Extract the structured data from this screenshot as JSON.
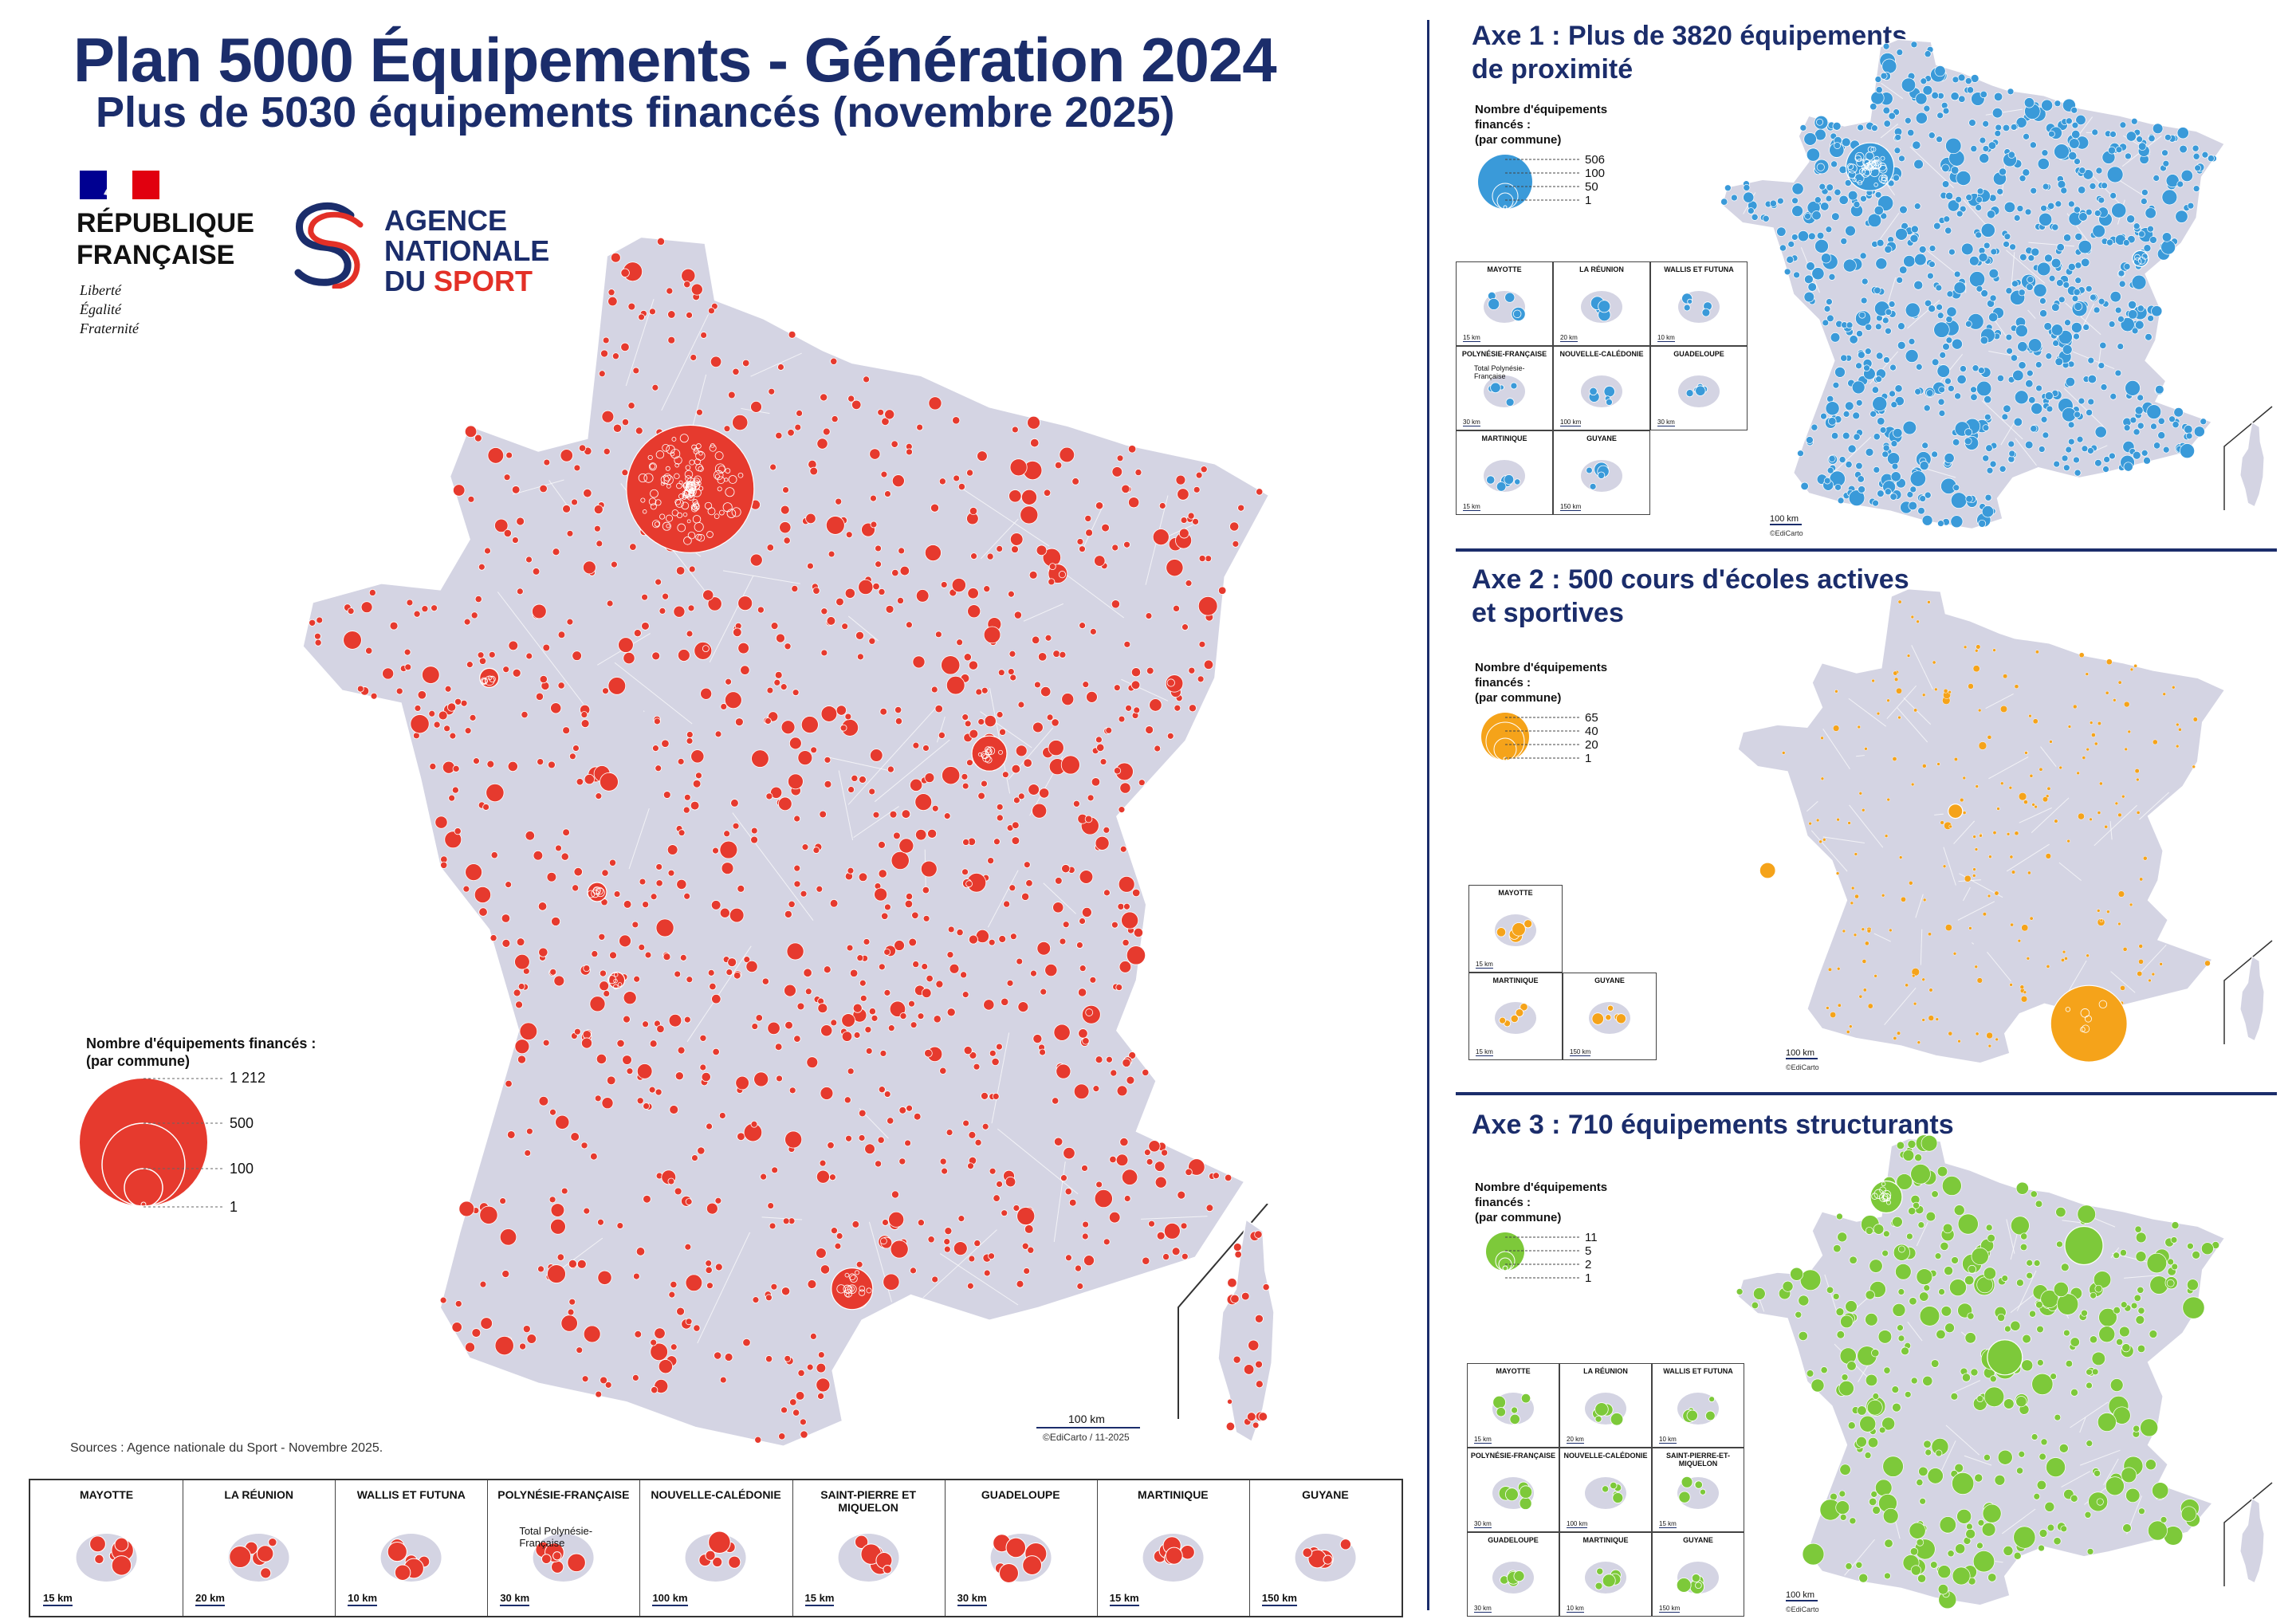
{
  "header": {
    "title": "Plan 5000 Équipements - Génération 2024",
    "subtitle": "Plus de 5030 équipements financés (novembre 2025)"
  },
  "logos": {
    "republique": "RÉPUBLIQUE FRANÇAISE",
    "republique_line1": "RÉPUBLIQUE",
    "republique_line2": "FRANÇAISE",
    "motto_1": "Liberté",
    "motto_2": "Égalité",
    "motto_3": "Fraternité",
    "ans_line1": "AGENCE",
    "ans_line2": "NATIONALE",
    "ans_line3_a": "DU ",
    "ans_line3_b": "SPORT",
    "flag_colors": [
      "#000091",
      "#ffffff",
      "#e1000f"
    ],
    "ans_colors": [
      "#1b2d6b",
      "#e33027"
    ]
  },
  "main_map": {
    "legend_title": "Nombre d'équipements financés :",
    "legend_sub": "(par commune)",
    "legend_values": [
      "1 212",
      "500",
      "100",
      "1"
    ],
    "scale": "100 km",
    "credit": "©EdiCarto / 11-2025",
    "color": "#e63a2e",
    "land_color": "#d4d4e3"
  },
  "sources": "Sources : Agence nationale du Sport - Novembre 2025.",
  "overseas": [
    {
      "name": "MAYOTTE",
      "scale": "15 km"
    },
    {
      "name": "LA RÉUNION",
      "scale": "20 km"
    },
    {
      "name": "WALLIS ET FUTUNA",
      "scale": "10 km"
    },
    {
      "name": "POLYNÉSIE-FRANÇAISE",
      "scale": "30 km",
      "note": "Total Polynésie-Française"
    },
    {
      "name": "NOUVELLE-CALÉDONIE",
      "scale": "100 km"
    },
    {
      "name": "SAINT-PIERRE ET MIQUELON",
      "scale": "15 km"
    },
    {
      "name": "GUADELOUPE",
      "scale": "30 km"
    },
    {
      "name": "MARTINIQUE",
      "scale": "15 km"
    },
    {
      "name": "GUYANE",
      "scale": "150 km"
    }
  ],
  "axes": [
    {
      "title_line1": "Axe 1 : Plus de 3820 équipements",
      "title_line2": "de proximité",
      "legend_title_1": "Nombre d'équipements",
      "legend_title_2": "financés :",
      "legend_title_3": "(par commune)",
      "legend_values": [
        "506",
        "100",
        "50",
        "1"
      ],
      "color": "#3a9ad9",
      "scale": "100 km",
      "credit": "©EdiCarto",
      "insets": [
        {
          "name": "MAYOTTE",
          "scale": "15 km"
        },
        {
          "name": "LA RÉUNION",
          "scale": "20 km"
        },
        {
          "name": "WALLIS ET FUTUNA",
          "scale": "10 km"
        },
        {
          "name": "POLYNÉSIE-FRANÇAISE",
          "scale": "30 km",
          "note": "Total Polynésie-Française"
        },
        {
          "name": "NOUVELLE-CALÉDONIE",
          "scale": "100 km"
        },
        {
          "name": "GUADELOUPE",
          "scale": "30 km"
        },
        {
          "name": "MARTINIQUE",
          "scale": "15 km"
        },
        {
          "name": "GUYANE",
          "scale": "150 km"
        }
      ]
    },
    {
      "title_line1": "Axe 2 : 500 cours d'écoles actives",
      "title_line2": "et sportives",
      "legend_title_1": "Nombre d'équipements",
      "legend_title_2": "financés :",
      "legend_title_3": "(par commune)",
      "legend_values": [
        "65",
        "40",
        "20",
        "1"
      ],
      "color": "#f5a31a",
      "scale": "100 km",
      "credit": "©EdiCarto",
      "insets": [
        {
          "name": "MAYOTTE",
          "scale": "15 km"
        },
        {
          "name": "MARTINIQUE",
          "scale": "15 km"
        },
        {
          "name": "GUYANE",
          "scale": "150 km"
        }
      ]
    },
    {
      "title_line1": "Axe 3 : 710 équipements structurants",
      "title_line2": "",
      "legend_title_1": "Nombre d'équipements",
      "legend_title_2": "financés :",
      "legend_title_3": "(par commune)",
      "legend_values": [
        "11",
        "5",
        "2",
        "1"
      ],
      "color": "#7dc93a",
      "scale": "100 km",
      "credit": "©EdiCarto",
      "insets": [
        {
          "name": "MAYOTTE",
          "scale": "15 km"
        },
        {
          "name": "LA RÉUNION",
          "scale": "20 km"
        },
        {
          "name": "WALLIS ET FUTUNA",
          "scale": "10 km"
        },
        {
          "name": "POLYNÉSIE-FRANÇAISE",
          "scale": "30 km"
        },
        {
          "name": "NOUVELLE-CALÉDONIE",
          "scale": "100 km"
        },
        {
          "name": "SAINT-PIERRE-ET-MIQUELON",
          "scale": "15 km"
        },
        {
          "name": "GUADELOUPE",
          "scale": "30 km"
        },
        {
          "name": "MARTINIQUE",
          "scale": "10 km"
        },
        {
          "name": "GUYANE",
          "scale": "150 km"
        }
      ]
    }
  ]
}
